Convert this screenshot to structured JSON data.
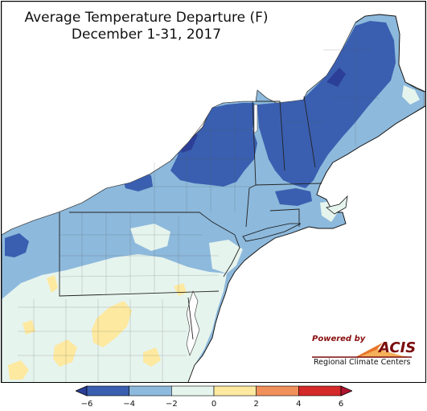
{
  "title": {
    "line1": "Average Temperature Departure (F)",
    "line2": "December 1-31, 2017"
  },
  "logo": {
    "powered_by": "Powered by",
    "brand": "ACIS",
    "subtitle": "Regional Climate Centers"
  },
  "legend": {
    "tick_labels": [
      "−6",
      "−4",
      "−2",
      "0",
      "2",
      "4",
      "6"
    ],
    "bins": [
      {
        "range": [
          -6,
          -4
        ],
        "color": "#3a5fb0"
      },
      {
        "range": [
          -4,
          -2
        ],
        "color": "#8db9dc"
      },
      {
        "range": [
          -2,
          0
        ],
        "color": "#e6f4ee"
      },
      {
        "range": [
          0,
          2
        ],
        "color": "#fde9a0"
      },
      {
        "range": [
          2,
          4
        ],
        "color": "#f0905a"
      },
      {
        "range": [
          4,
          6
        ],
        "color": "#d42a2a"
      }
    ],
    "under_color": "#2c3f98",
    "over_color": "#b01430"
  },
  "map": {
    "region": "Northeast United States",
    "land_background_color": "#8db9dc",
    "water_color": "#ffffff"
  }
}
